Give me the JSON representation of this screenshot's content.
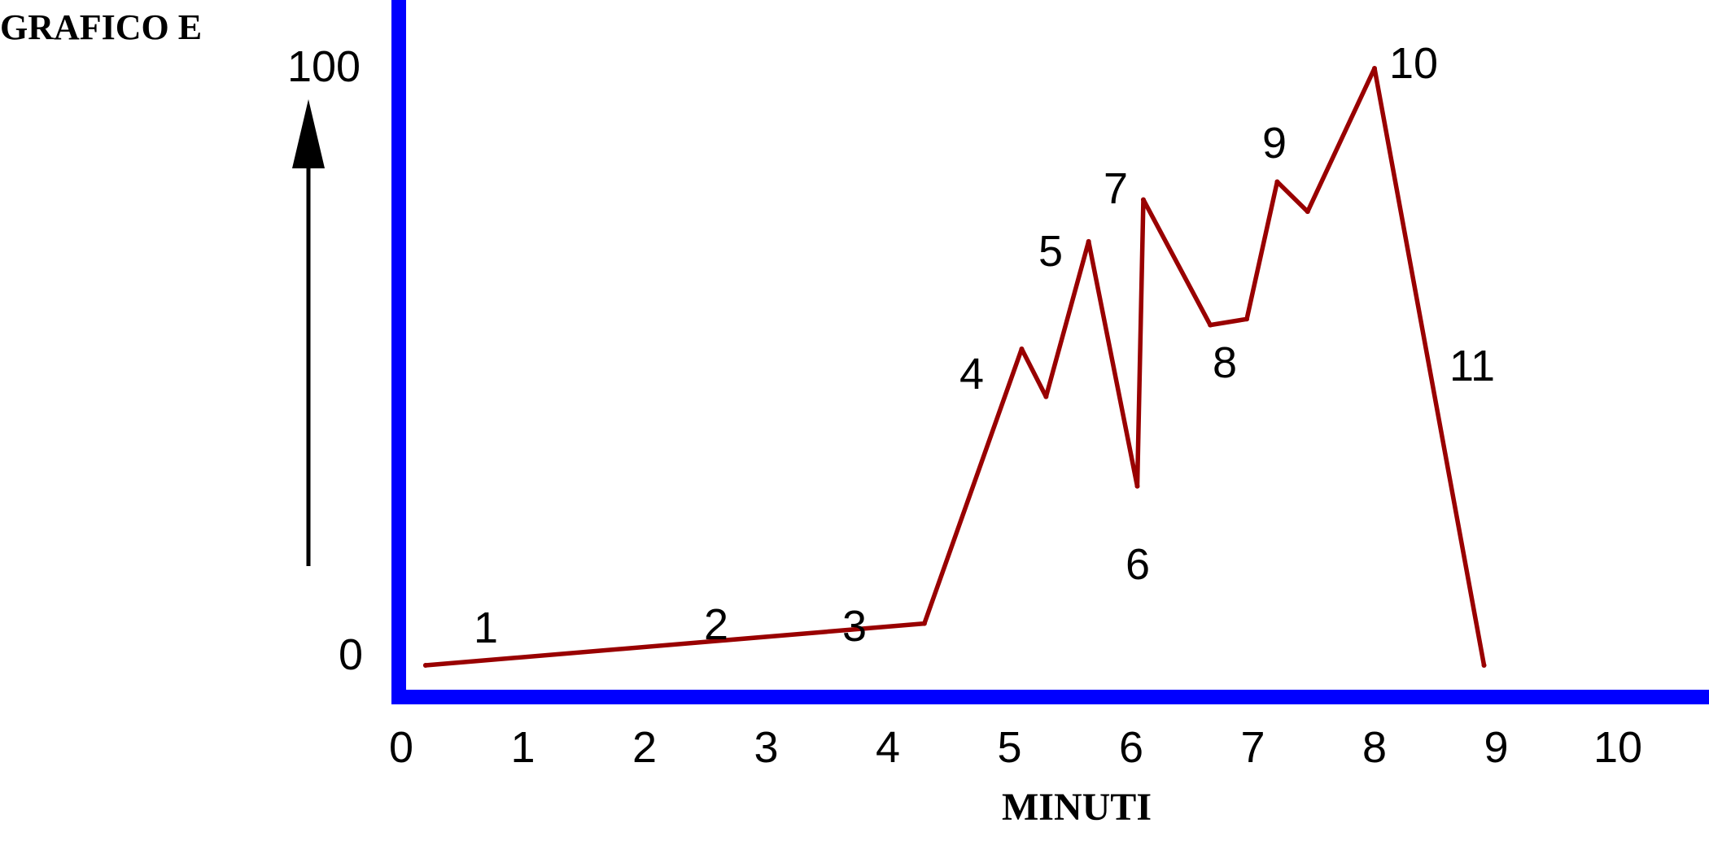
{
  "chart_data": {
    "type": "line",
    "title": "GRAFICO E",
    "xlabel": "MINUTI",
    "ylabel": "",
    "xlim": [
      0,
      10
    ],
    "ylim": [
      0,
      100
    ],
    "x_ticks": [
      "0",
      "1",
      "2",
      "3",
      "4",
      "5",
      "6",
      "7",
      "8",
      "9",
      "10"
    ],
    "y_ticks": [
      "0",
      "100"
    ],
    "grid": false,
    "colors": {
      "axes": "#0000ff",
      "line": "#990000",
      "text": "#000000"
    },
    "series": [
      {
        "x": [
          0.2,
          4.3,
          5.1,
          5.3,
          5.65,
          6.05,
          6.1,
          6.65,
          6.95,
          7.2,
          7.45,
          8.0,
          8.9
        ],
        "y": [
          0,
          7,
          53,
          45,
          71,
          30,
          78,
          57,
          58,
          81,
          76,
          100,
          0
        ]
      }
    ],
    "point_labels": [
      "1",
      "2",
      "3",
      "4",
      "5",
      "6",
      "7",
      "8",
      "9",
      "10",
      "11"
    ],
    "arrow": "up-arrow"
  }
}
